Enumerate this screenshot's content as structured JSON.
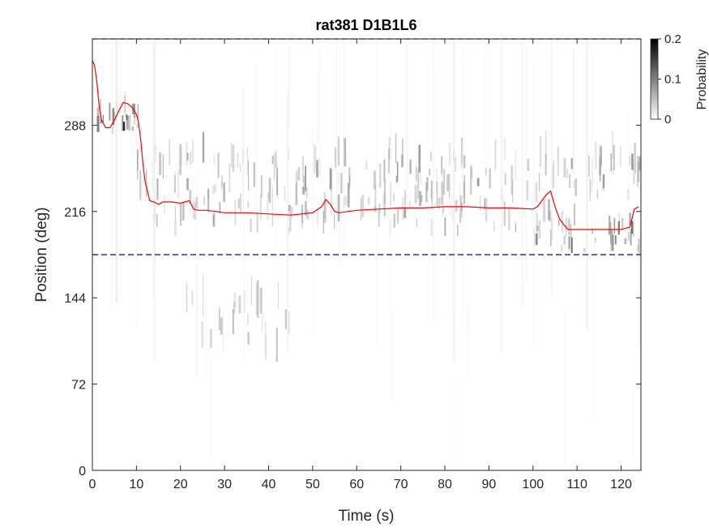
{
  "chart_data": {
    "type": "heatmap",
    "title": "rat381 D1B1L6",
    "xlabel": "Time (s)",
    "ylabel": "Position (deg)",
    "xlim": [
      0,
      124.5
    ],
    "ylim": [
      0,
      360
    ],
    "x_ticks": [
      0,
      10,
      20,
      30,
      40,
      50,
      60,
      70,
      80,
      90,
      100,
      110,
      120
    ],
    "y_ticks": [
      0,
      72,
      144,
      216,
      288
    ],
    "colorbar": {
      "label": "Probability",
      "ticks": [
        "0",
        "0.1",
        "0.2"
      ],
      "range": [
        0,
        0.2
      ],
      "colormap": "white-to-black"
    },
    "reference_lines": [
      {
        "y": 360,
        "style": "dashed",
        "color": "#0000cc"
      },
      {
        "y": 180,
        "style": "dashed",
        "color": "#0000cc"
      }
    ],
    "series": [
      {
        "color": "#ff0000",
        "style": "line",
        "x": [
          0,
          0.5,
          1,
          1.5,
          2,
          3,
          4,
          5,
          6,
          7,
          8,
          9,
          10,
          10.5,
          11,
          11.5,
          12,
          12.5,
          13,
          14,
          15,
          16,
          18,
          20,
          22,
          23,
          24,
          26,
          30,
          35,
          40,
          45,
          50,
          52,
          53,
          54,
          55,
          56,
          60,
          65,
          70,
          75,
          80,
          85,
          90,
          95,
          100,
          101,
          102,
          103,
          104,
          105,
          106,
          107,
          108,
          110,
          115,
          120,
          122,
          123,
          124
        ],
        "y": [
          342,
          338,
          325,
          305,
          293,
          286,
          286,
          292,
          300,
          307,
          306,
          303,
          297,
          290,
          275,
          255,
          240,
          233,
          225,
          224,
          222,
          224,
          224,
          223,
          225,
          218,
          217,
          217,
          215,
          215,
          214,
          213,
          215,
          220,
          226,
          222,
          216,
          215,
          217,
          218,
          219,
          219,
          220,
          220,
          219,
          219,
          218,
          220,
          225,
          230,
          233,
          220,
          210,
          205,
          201,
          201,
          201,
          201,
          203,
          218,
          220
        ]
      }
    ],
    "heatmap_bands": [
      {
        "t0": 1,
        "t1": 11,
        "p0": 280,
        "p1": 300,
        "density": 0.75
      },
      {
        "t0": 10,
        "t1": 124.5,
        "p0": 225,
        "p1": 260,
        "density": 0.35
      },
      {
        "t0": 12,
        "t1": 104,
        "p0": 195,
        "p1": 225,
        "density": 0.3
      },
      {
        "t0": 100,
        "t1": 124.5,
        "p0": 180,
        "p1": 205,
        "density": 0.5
      },
      {
        "t0": 20,
        "t1": 45,
        "p0": 90,
        "p1": 140,
        "density": 0.25
      },
      {
        "t0": 0,
        "t1": 124.5,
        "p0": 0,
        "p1": 360,
        "density": 0.05
      }
    ]
  }
}
